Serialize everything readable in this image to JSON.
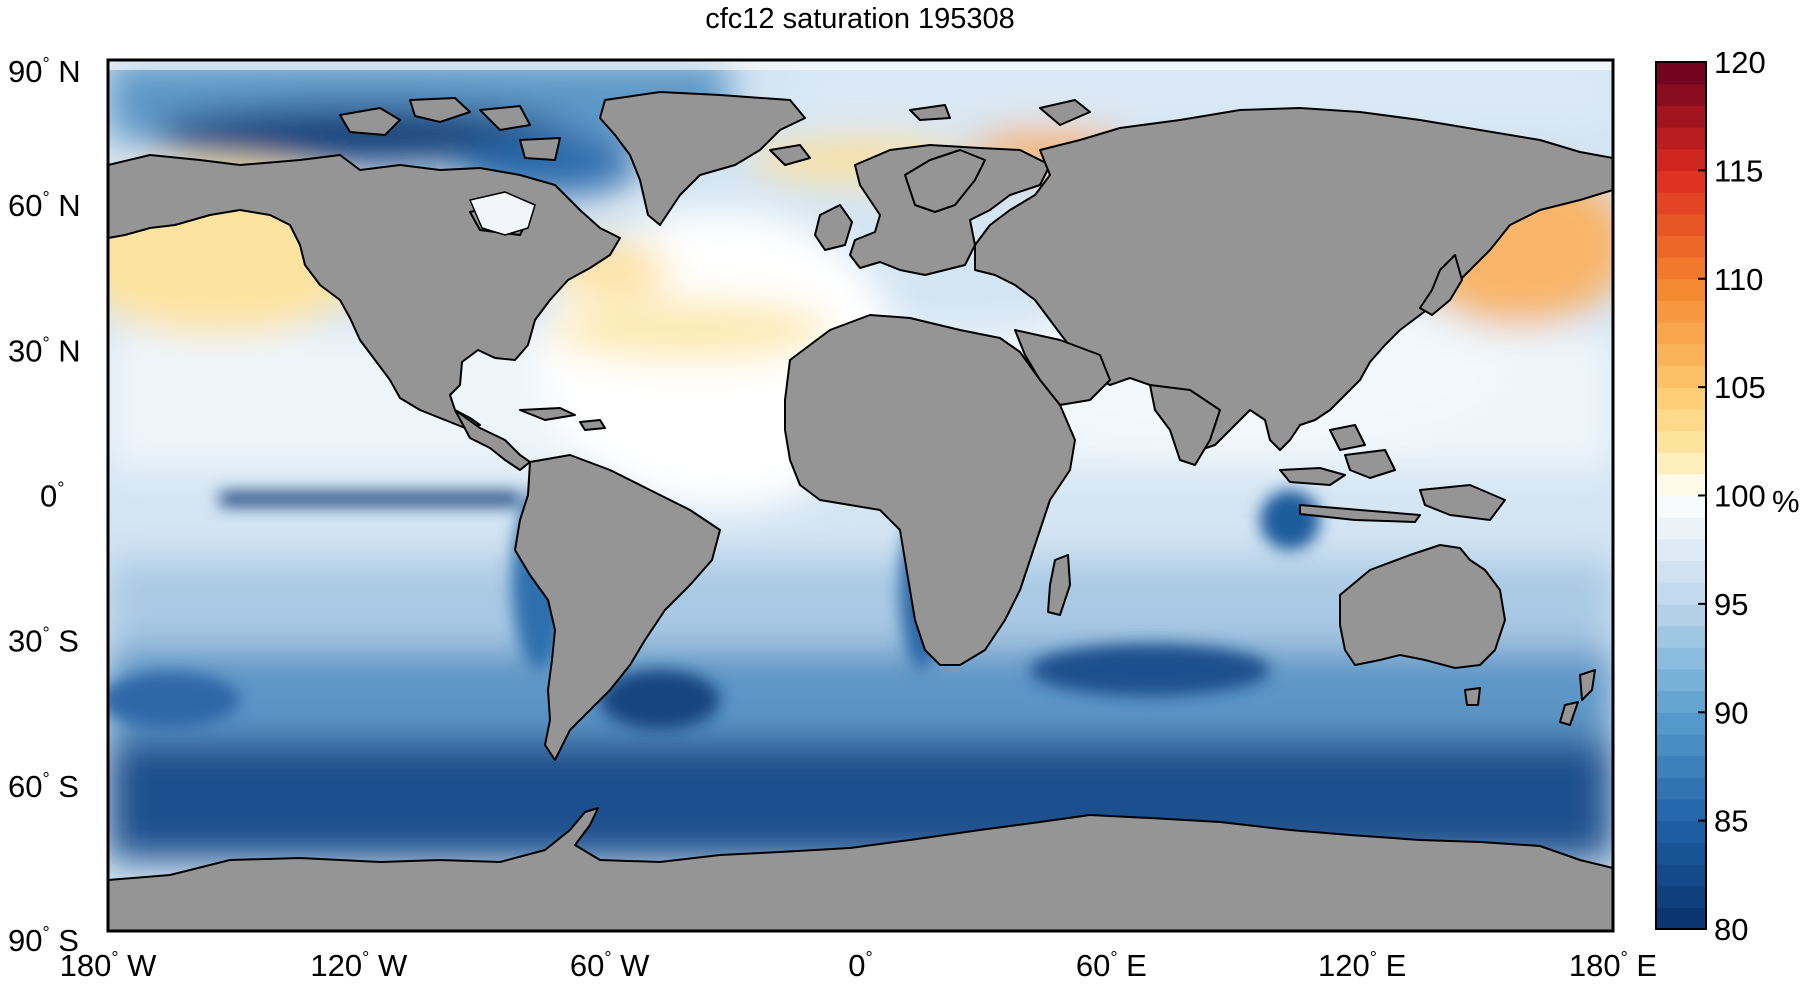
{
  "title": "cfc12 saturation 195308",
  "colorbar": {
    "unit": "%",
    "min": 80,
    "max": 120,
    "ticks": [
      "80",
      "85",
      "90",
      "95",
      "100",
      "105",
      "110",
      "115",
      "120"
    ],
    "stops": [
      {
        "v": 80,
        "color": "#08306b"
      },
      {
        "v": 85,
        "color": "#1f62a8"
      },
      {
        "v": 90,
        "color": "#5a9fcf"
      },
      {
        "v": 95,
        "color": "#bcd6ec"
      },
      {
        "v": 100,
        "color": "#ffffff"
      },
      {
        "v": 102,
        "color": "#fde9a6"
      },
      {
        "v": 105,
        "color": "#fdc86b"
      },
      {
        "v": 110,
        "color": "#f4822c"
      },
      {
        "v": 115,
        "color": "#dc2a1f"
      },
      {
        "v": 120,
        "color": "#67001f"
      }
    ]
  },
  "lat_ticks": [
    {
      "value": 90,
      "num": "90",
      "hemi": "N"
    },
    {
      "value": 60,
      "num": "60",
      "hemi": "N"
    },
    {
      "value": 30,
      "num": "30",
      "hemi": "N"
    },
    {
      "value": 0,
      "num": "0",
      "hemi": ""
    },
    {
      "value": -30,
      "num": "30",
      "hemi": "S"
    },
    {
      "value": -60,
      "num": "60",
      "hemi": "S"
    },
    {
      "value": -90,
      "num": "90",
      "hemi": "S"
    }
  ],
  "lon_ticks": [
    {
      "value": -180,
      "num": "180",
      "hemi": "W"
    },
    {
      "value": -120,
      "num": "120",
      "hemi": "W"
    },
    {
      "value": -60,
      "num": "60",
      "hemi": "W"
    },
    {
      "value": 0,
      "num": "0",
      "hemi": ""
    },
    {
      "value": 60,
      "num": "60",
      "hemi": "E"
    },
    {
      "value": 120,
      "num": "120",
      "hemi": "E"
    },
    {
      "value": 180,
      "num": "180",
      "hemi": "E"
    }
  ],
  "colors": {
    "land": "#959595",
    "coast": "#000000",
    "no_data": "#ffffff"
  }
}
